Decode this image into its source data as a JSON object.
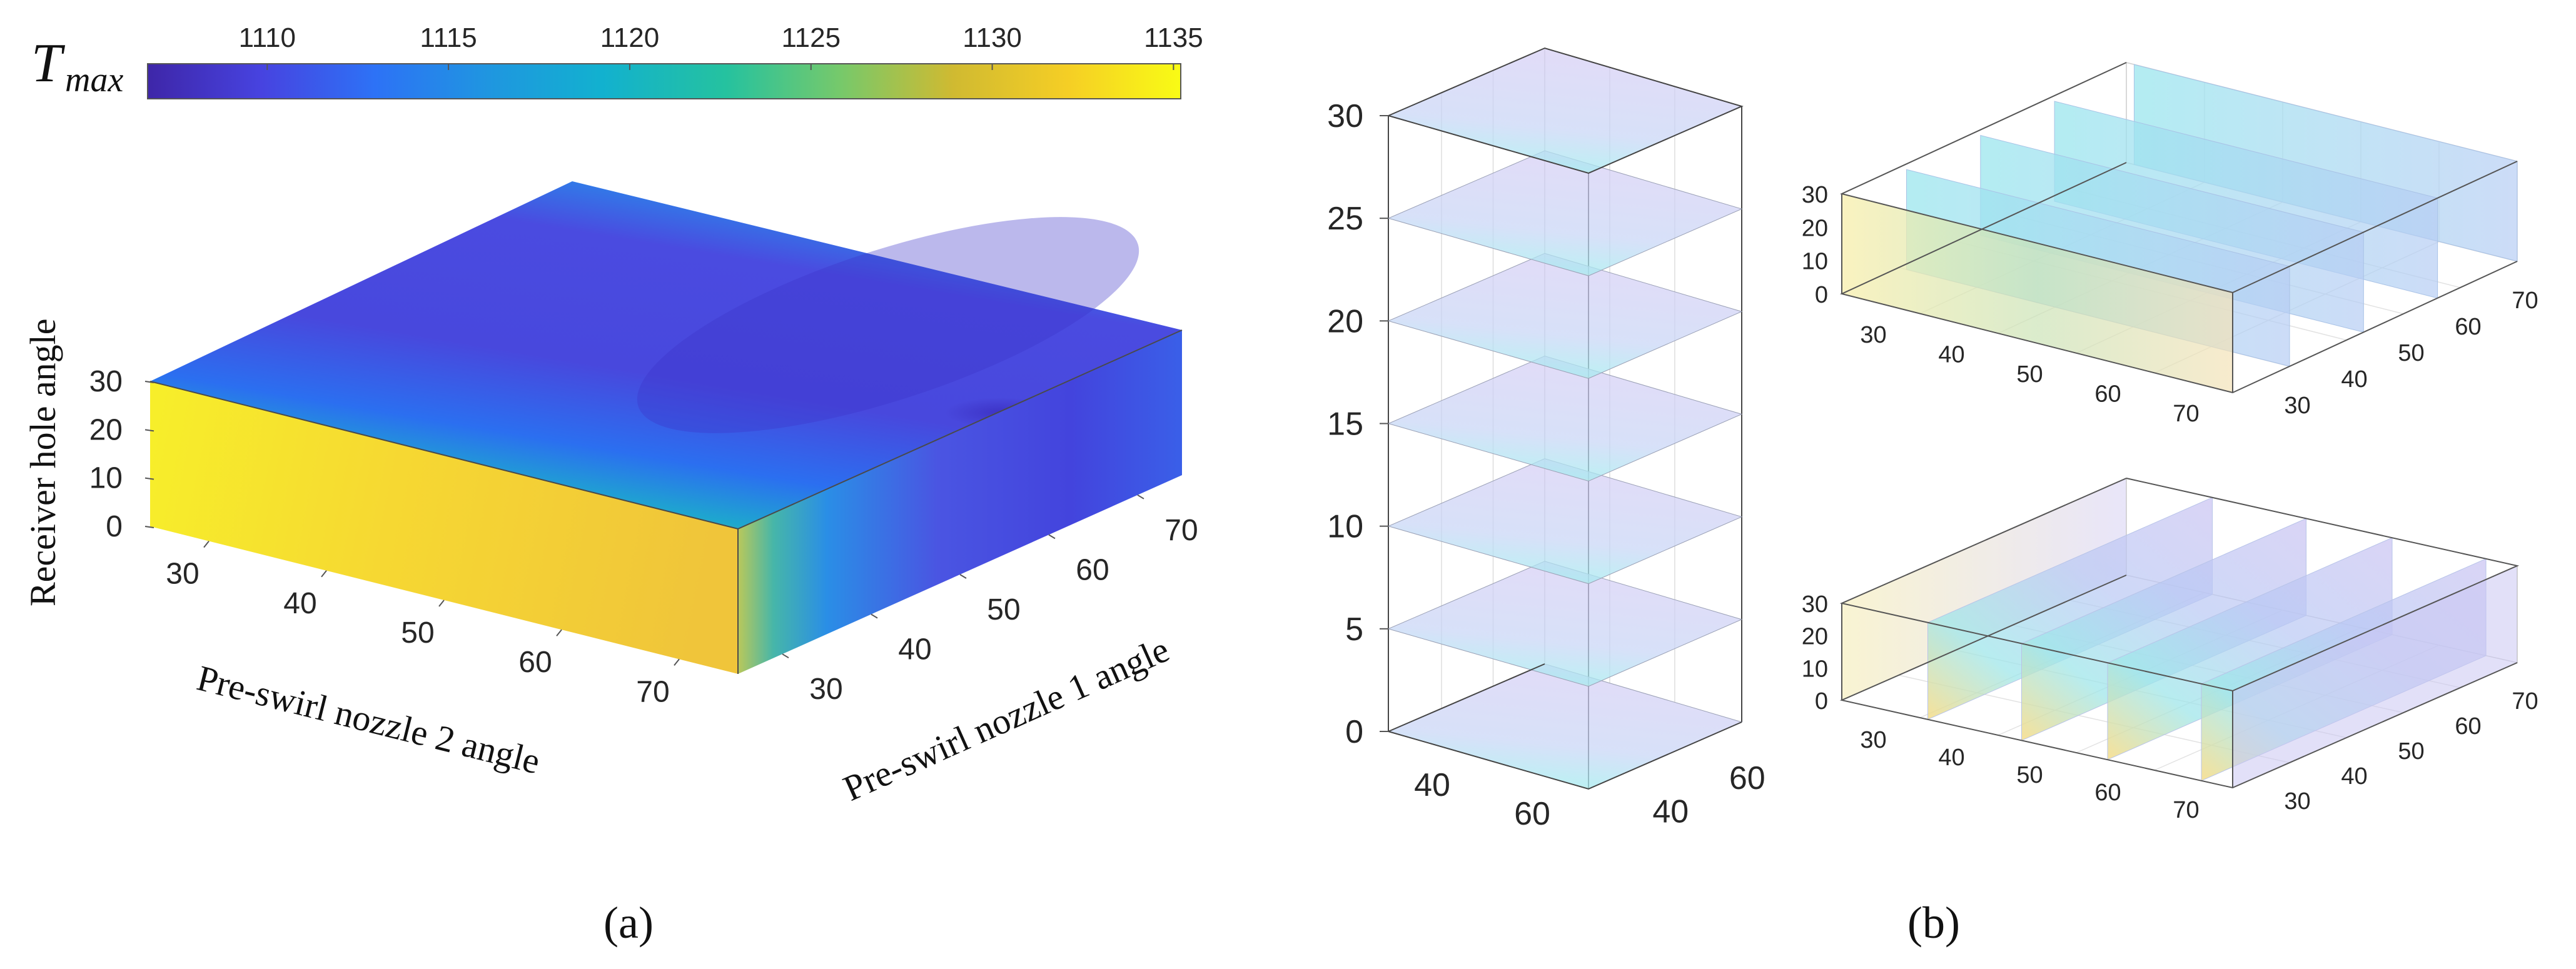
{
  "colorbar": {
    "symbol": "T",
    "subscript": "max",
    "ticks": [
      "1110",
      "1115",
      "1120",
      "1125",
      "1130",
      "1135"
    ],
    "range": [
      1106.7,
      1135.2
    ],
    "colormap": [
      "#3e26a8",
      "#4743e0",
      "#2d72f6",
      "#1f96e0",
      "#12b1cf",
      "#25c29f",
      "#76c96b",
      "#d0ba31",
      "#f5ce25",
      "#f9fb15"
    ]
  },
  "panel_a": {
    "letter": "(a)",
    "xlabel": "Pre-swirl nozzle 2 angle",
    "ylabel": "Pre-swirl nozzle 1 angle",
    "zlabel": "Receiver hole angle",
    "x_ticks": [
      "30",
      "40",
      "50",
      "60",
      "70"
    ],
    "y_ticks": [
      "30",
      "40",
      "50",
      "60",
      "70"
    ],
    "z_ticks": [
      "0",
      "10",
      "20",
      "30"
    ]
  },
  "panel_b": {
    "letter": "(b)",
    "slice_z": {
      "z_ticks": [
        "0",
        "5",
        "10",
        "15",
        "20",
        "25",
        "30"
      ],
      "x_ticks": [
        "40",
        "60"
      ],
      "y_ticks": [
        "40",
        "60"
      ]
    },
    "slice_y": {
      "z_ticks": [
        "0",
        "10",
        "20",
        "30"
      ],
      "x_ticks": [
        "30",
        "40",
        "50",
        "60",
        "70"
      ],
      "y_ticks": [
        "30",
        "40",
        "50",
        "60",
        "70"
      ]
    },
    "slice_x": {
      "z_ticks": [
        "0",
        "10",
        "20",
        "30"
      ],
      "x_ticks": [
        "30",
        "40",
        "50",
        "60",
        "70"
      ],
      "y_ticks": [
        "30",
        "40",
        "50",
        "60",
        "70"
      ]
    }
  },
  "chart_data": {
    "type": "heatmap",
    "kind": "3D volume of maximum temperature (panel a) and slice views of the same volume (panel b)",
    "value_name": "Tmax",
    "x": {
      "label": "Pre-swirl nozzle 2 angle",
      "range": [
        25,
        75
      ]
    },
    "y": {
      "label": "Pre-swirl nozzle 1 angle",
      "range": [
        25,
        75
      ]
    },
    "z": {
      "label": "Receiver hole angle",
      "range": [
        0,
        30
      ]
    },
    "value_range": [
      1106.7,
      1135.2
    ],
    "pattern": [
      {
        "region": "low nozzle 1 angle (front face)",
        "Tmax": 1133
      },
      {
        "region": "nozzle 1 ≈ 40",
        "Tmax": 1124
      },
      {
        "region": "nozzle 1 50–70, mid nozzle 2 angles",
        "Tmax": 1110
      },
      {
        "region": "nozzle 1 ≈ 70, high nozzle 2 angles",
        "Tmax": 1114
      }
    ],
    "grid": true
  }
}
